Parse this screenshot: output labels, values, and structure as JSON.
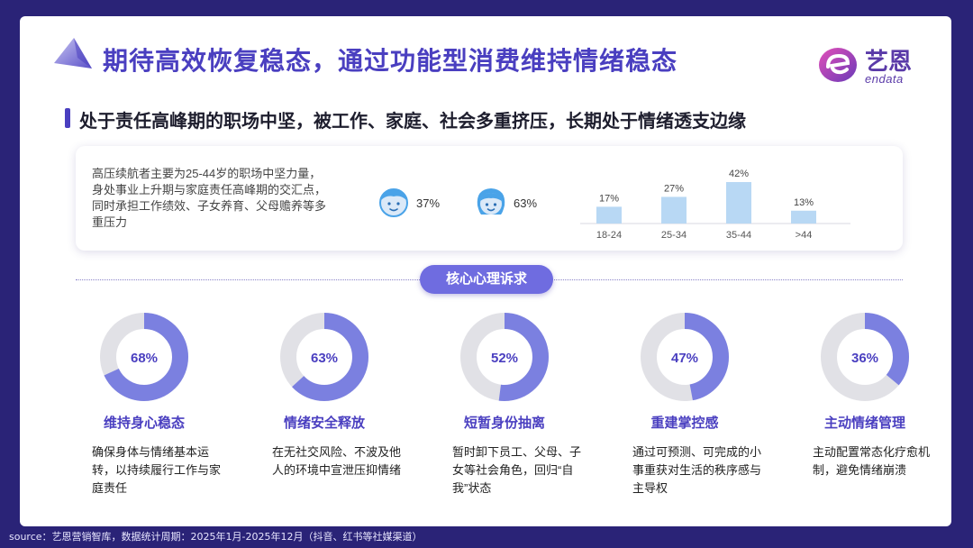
{
  "header": {
    "title": "期待高效恢复稳态，通过功能型消费维持情绪稳态",
    "logo_text": "艺恩",
    "logo_sub": "endata"
  },
  "subtitle": "处于责任高峰期的职场中坚，被工作、家庭、社会多重挤压，长期处于情绪透支边缘",
  "info": {
    "text": "高压续航者主要为25-44岁的职场中坚力量，身处事业上升期与家庭责任高峰期的交汇点，同时承担工作绩效、子女养育、父母赡养等多重压力",
    "male": {
      "icon": "male-face-icon",
      "pct": "37%"
    },
    "female": {
      "icon": "female-face-icon",
      "pct": "63%"
    }
  },
  "chart_data": {
    "type": "bar",
    "categories": [
      "18-24",
      "25-34",
      "35-44",
      ">44"
    ],
    "values": [
      17,
      27,
      42,
      13
    ],
    "labels": [
      "17%",
      "27%",
      "42%",
      "13%"
    ],
    "bar_color": "#b8d8f4",
    "title": "",
    "xlabel": "",
    "ylabel": ""
  },
  "core_label": "核心心理诉求",
  "items": [
    {
      "pct": "68%",
      "value": 68,
      "title": "维持身心稳态",
      "desc": "确保身体与情绪基本运转，以持续履行工作与家庭责任"
    },
    {
      "pct": "63%",
      "value": 63,
      "title": "情绪安全释放",
      "desc": "在无社交风险、不波及他人的环境中宣泄压抑情绪"
    },
    {
      "pct": "52%",
      "value": 52,
      "title": "短暂身份抽离",
      "desc": "暂时卸下员工、父母、子女等社会角色，回归“自我”状态"
    },
    {
      "pct": "47%",
      "value": 47,
      "title": "重建掌控感",
      "desc": "通过可预测、可完成的小事重获对生活的秩序感与主导权"
    },
    {
      "pct": "36%",
      "value": 36,
      "title": "主动情绪管理",
      "desc": "主动配置常态化疗愈机制，避免情绪崩溃"
    }
  ],
  "colors": {
    "accent": "#4a3fc0",
    "donut_fill": "#7b80e0",
    "donut_track": "#e1e1e6",
    "background": "#2a2377"
  },
  "footer": "source：艺恩营销智库，数据统计周期：2025年1月-2025年12月（抖音、红书等社媒渠道）"
}
